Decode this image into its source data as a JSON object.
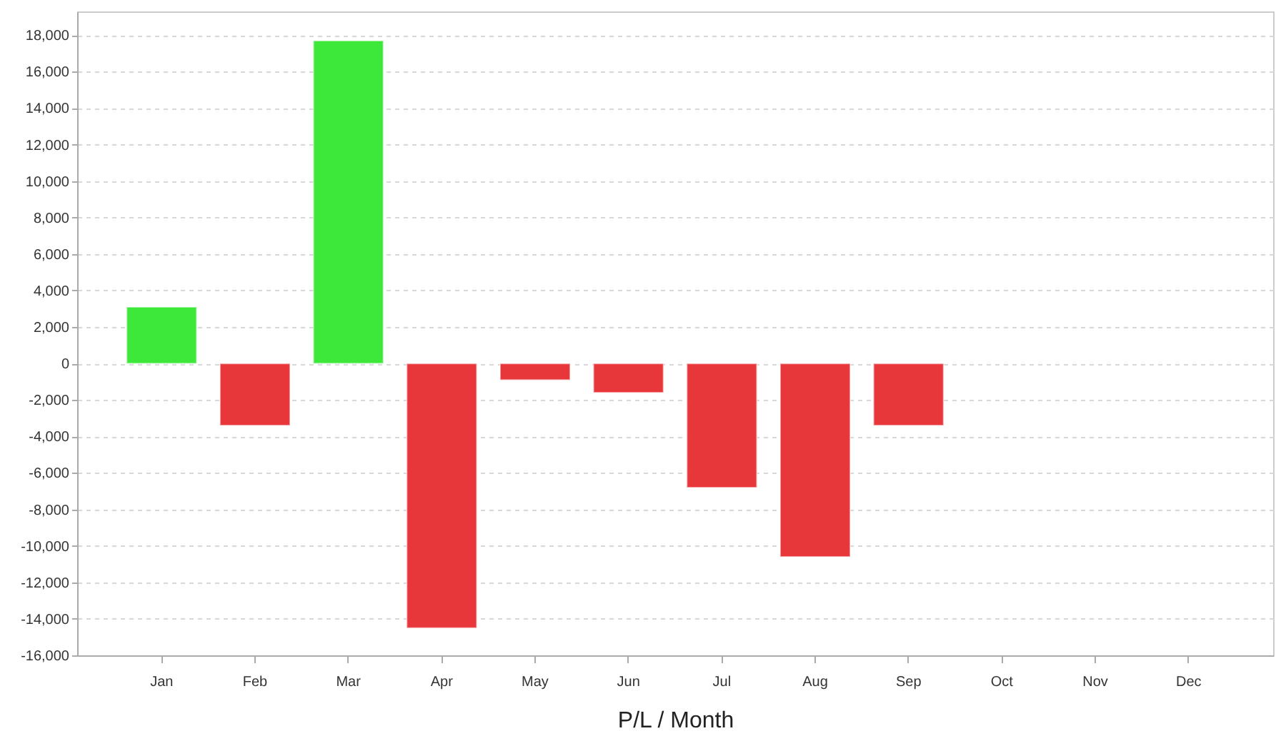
{
  "chart_data": {
    "type": "bar",
    "xlabel": "P/L / Month",
    "categories": [
      "Jan",
      "Feb",
      "Mar",
      "Apr",
      "May",
      "Jun",
      "Jul",
      "Aug",
      "Sep",
      "Oct",
      "Nov",
      "Dec"
    ],
    "values": [
      3100,
      -3400,
      17700,
      -14500,
      -900,
      -1600,
      -6800,
      -10600,
      -3400,
      null,
      null,
      null
    ],
    "colors": [
      "#3ee83a",
      "#e8373b",
      "#3ee83a",
      "#e8373b",
      "#e8373b",
      "#e8373b",
      "#e8373b",
      "#e8373b",
      "#e8373b",
      "#e8373b",
      "#e8373b",
      "#e8373b"
    ],
    "ylim": [
      -16000,
      19300
    ],
    "yticks": [
      {
        "value": -16000,
        "label": "-16,000"
      },
      {
        "value": -14000,
        "label": "-14,000"
      },
      {
        "value": -12000,
        "label": "-12,000"
      },
      {
        "value": -10000,
        "label": "-10,000"
      },
      {
        "value": -8000,
        "label": "-8,000"
      },
      {
        "value": -6000,
        "label": "-6,000"
      },
      {
        "value": -4000,
        "label": "-4,000"
      },
      {
        "value": -2000,
        "label": "-2,000"
      },
      0,
      {
        "value": 2000,
        "label": "2,000"
      },
      {
        "value": 4000,
        "label": "4,000"
      },
      {
        "value": 6000,
        "label": "6,000"
      },
      {
        "value": 8000,
        "label": "8,000"
      },
      {
        "value": 10000,
        "label": "10,000"
      },
      {
        "value": 12000,
        "label": "12,000"
      },
      {
        "value": 14000,
        "label": "14,000"
      },
      {
        "value": 16000,
        "label": "16,000"
      },
      {
        "value": 18000,
        "label": "18,000"
      }
    ],
    "grid": "y"
  }
}
